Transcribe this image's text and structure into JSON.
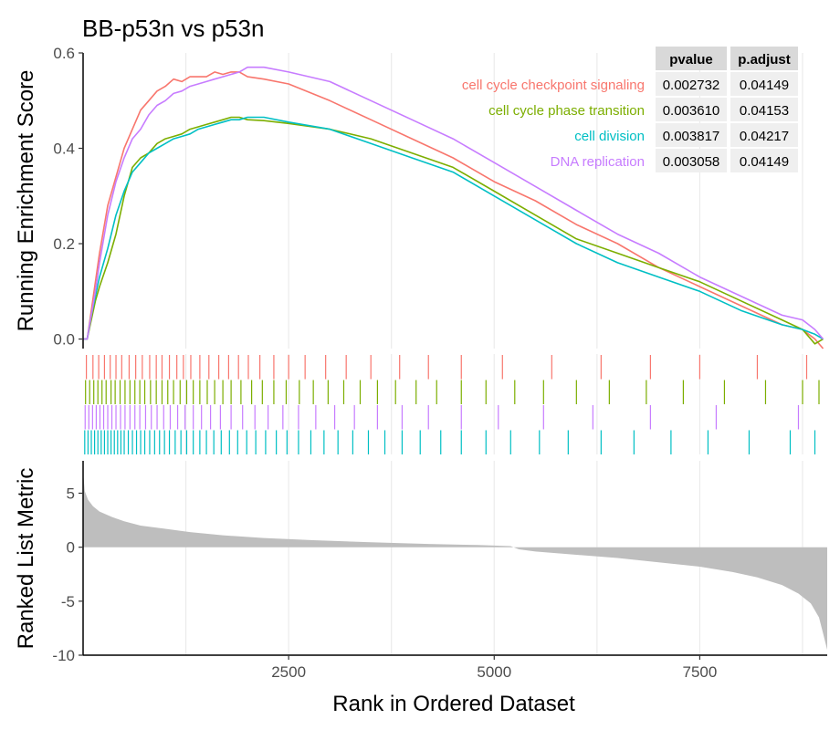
{
  "chart_data": {
    "type": "line",
    "title": "BB-p53n vs p53n",
    "xlabel": "Rank in Ordered Dataset",
    "xlim": [
      0,
      9050
    ],
    "xticks": [
      2500,
      5000,
      7500
    ],
    "es_panel": {
      "ylabel": "Running Enrichment Score",
      "ylim": [
        -0.02,
        0.6
      ],
      "yticks": [
        0.0,
        0.2,
        0.4,
        0.6
      ],
      "ytick_labels": [
        "0.0",
        "0.2",
        "0.4",
        "0.6"
      ]
    },
    "metric_panel": {
      "ylabel": "Ranked List Metric",
      "ylim": [
        -10,
        8
      ],
      "yticks": [
        -10,
        -5,
        0,
        5
      ],
      "ytick_labels": [
        "-10",
        "-5",
        "0",
        "5"
      ],
      "curve": {
        "x": [
          0,
          20,
          60,
          120,
          200,
          350,
          500,
          700,
          1000,
          1300,
          1700,
          2200,
          2800,
          3500,
          4200,
          4800,
          5200,
          5300,
          5500,
          6000,
          6500,
          7000,
          7500,
          7900,
          8200,
          8500,
          8700,
          8850,
          8950,
          9000,
          9050
        ],
        "y": [
          7.0,
          5.2,
          4.4,
          3.8,
          3.3,
          2.8,
          2.4,
          2.0,
          1.7,
          1.4,
          1.1,
          0.85,
          0.65,
          0.45,
          0.3,
          0.2,
          0.1,
          -0.2,
          -0.4,
          -0.7,
          -1.0,
          -1.4,
          -1.8,
          -2.3,
          -2.8,
          -3.5,
          -4.3,
          -5.2,
          -6.5,
          -8.0,
          -9.5
        ]
      }
    },
    "series": [
      {
        "name": "cell cycle checkpoint signaling",
        "color": "#F8766D",
        "pvalue": "0.002732",
        "p_adjust": "0.04149",
        "x": [
          0,
          50,
          100,
          150,
          200,
          300,
          400,
          500,
          600,
          700,
          800,
          900,
          1000,
          1100,
          1200,
          1300,
          1400,
          1500,
          1600,
          1700,
          1800,
          1900,
          2000,
          2200,
          2500,
          3000,
          3500,
          4000,
          4500,
          5000,
          5500,
          6000,
          6500,
          7000,
          7500,
          8000,
          8500,
          8750,
          8900,
          9000
        ],
        "y": [
          0.0,
          0.0,
          0.06,
          0.12,
          0.18,
          0.28,
          0.34,
          0.4,
          0.44,
          0.48,
          0.5,
          0.52,
          0.53,
          0.545,
          0.54,
          0.55,
          0.55,
          0.55,
          0.56,
          0.555,
          0.56,
          0.56,
          0.55,
          0.545,
          0.535,
          0.5,
          0.46,
          0.42,
          0.38,
          0.33,
          0.29,
          0.24,
          0.2,
          0.15,
          0.11,
          0.07,
          0.03,
          0.02,
          0.0,
          -0.02
        ],
        "hits": [
          40,
          120,
          190,
          260,
          330,
          400,
          470,
          560,
          640,
          720,
          810,
          890,
          960,
          1050,
          1140,
          1220,
          1310,
          1420,
          1530,
          1650,
          1770,
          1890,
          2010,
          2150,
          2320,
          2500,
          2700,
          2950,
          3200,
          3500,
          3850,
          4200,
          4600,
          5100,
          5700,
          6300,
          6900,
          7500,
          8200,
          8800
        ]
      },
      {
        "name": "cell cycle phase transition",
        "color": "#7CAE00",
        "pvalue": "0.003610",
        "p_adjust": "0.04153",
        "x": [
          0,
          50,
          100,
          150,
          200,
          300,
          400,
          500,
          600,
          700,
          800,
          900,
          1000,
          1100,
          1200,
          1300,
          1400,
          1500,
          1600,
          1700,
          1800,
          1900,
          2000,
          2200,
          2500,
          3000,
          3500,
          4000,
          4500,
          5000,
          5500,
          6000,
          6500,
          7000,
          7500,
          8000,
          8500,
          8750,
          8900,
          9000
        ],
        "y": [
          0.0,
          0.0,
          0.04,
          0.08,
          0.11,
          0.16,
          0.22,
          0.3,
          0.36,
          0.38,
          0.39,
          0.41,
          0.42,
          0.425,
          0.43,
          0.44,
          0.445,
          0.45,
          0.455,
          0.46,
          0.465,
          0.465,
          0.46,
          0.458,
          0.452,
          0.44,
          0.42,
          0.39,
          0.36,
          0.31,
          0.26,
          0.21,
          0.18,
          0.15,
          0.12,
          0.08,
          0.04,
          0.02,
          -0.01,
          0.0
        ],
        "hits": [
          30,
          80,
          130,
          180,
          230,
          280,
          340,
          390,
          450,
          510,
          570,
          630,
          690,
          750,
          820,
          890,
          960,
          1030,
          1100,
          1180,
          1260,
          1340,
          1420,
          1510,
          1600,
          1700,
          1800,
          1920,
          2050,
          2180,
          2320,
          2470,
          2630,
          2800,
          2980,
          3170,
          3370,
          3580,
          3800,
          4050,
          4300,
          4600,
          4900,
          5250,
          5600,
          6000,
          6400,
          6850,
          7300,
          7800,
          8300,
          8750,
          8950
        ]
      },
      {
        "name": "cell division",
        "color": "#00BFC4",
        "pvalue": "0.003817",
        "p_adjust": "0.04217",
        "x": [
          0,
          50,
          100,
          150,
          200,
          300,
          400,
          500,
          600,
          700,
          800,
          900,
          1000,
          1100,
          1200,
          1300,
          1400,
          1500,
          1600,
          1700,
          1800,
          1900,
          2000,
          2200,
          2500,
          3000,
          3500,
          4000,
          4500,
          5000,
          5500,
          6000,
          6500,
          7000,
          7500,
          8000,
          8500,
          8750,
          8900,
          9000
        ],
        "y": [
          0.0,
          0.0,
          0.05,
          0.09,
          0.13,
          0.19,
          0.26,
          0.31,
          0.35,
          0.37,
          0.39,
          0.4,
          0.41,
          0.42,
          0.425,
          0.43,
          0.44,
          0.445,
          0.45,
          0.455,
          0.46,
          0.46,
          0.465,
          0.465,
          0.455,
          0.44,
          0.41,
          0.38,
          0.35,
          0.3,
          0.25,
          0.2,
          0.16,
          0.13,
          0.1,
          0.06,
          0.03,
          0.02,
          0.01,
          0.0
        ],
        "hits": [
          20,
          60,
          100,
          140,
          180,
          220,
          260,
          300,
          340,
          380,
          420,
          460,
          500,
          550,
          600,
          650,
          700,
          750,
          810,
          870,
          930,
          990,
          1050,
          1120,
          1190,
          1260,
          1340,
          1420,
          1500,
          1590,
          1680,
          1780,
          1880,
          1990,
          2100,
          2220,
          2350,
          2480,
          2620,
          2770,
          2930,
          3100,
          3280,
          3470,
          3670,
          3880,
          4100,
          4350,
          4600,
          4900,
          5200,
          5550,
          5900,
          6300,
          6700,
          7150,
          7600,
          8100,
          8600,
          8900
        ]
      },
      {
        "name": "DNA replication",
        "color": "#C77CFF",
        "pvalue": "0.003058",
        "p_adjust": "0.04149",
        "x": [
          0,
          50,
          100,
          150,
          200,
          300,
          400,
          500,
          600,
          700,
          800,
          900,
          1000,
          1100,
          1200,
          1300,
          1400,
          1500,
          1600,
          1700,
          1800,
          1900,
          2000,
          2200,
          2500,
          3000,
          3500,
          4000,
          4500,
          5000,
          5500,
          6000,
          6500,
          7000,
          7500,
          8000,
          8500,
          8750,
          8900,
          9000
        ],
        "y": [
          0.0,
          0.0,
          0.05,
          0.1,
          0.16,
          0.26,
          0.33,
          0.38,
          0.42,
          0.44,
          0.47,
          0.49,
          0.5,
          0.515,
          0.52,
          0.53,
          0.535,
          0.54,
          0.545,
          0.55,
          0.555,
          0.56,
          0.57,
          0.57,
          0.56,
          0.54,
          0.5,
          0.46,
          0.42,
          0.37,
          0.32,
          0.27,
          0.22,
          0.18,
          0.13,
          0.09,
          0.05,
          0.04,
          0.02,
          0.0
        ],
        "hits": [
          25,
          70,
          115,
          160,
          205,
          250,
          300,
          350,
          400,
          455,
          510,
          570,
          630,
          690,
          760,
          830,
          900,
          980,
          1060,
          1150,
          1240,
          1340,
          1440,
          1550,
          1670,
          1800,
          1940,
          2090,
          2250,
          2430,
          2620,
          2830,
          3060,
          3300,
          3580,
          3880,
          4200,
          4600,
          5050,
          5600,
          6200,
          6900,
          7700,
          8700
        ]
      }
    ],
    "legend": {
      "placement": "top-right",
      "columns": [
        "pvalue",
        "p.adjust"
      ]
    },
    "grid": {
      "x": true,
      "y": false
    }
  }
}
